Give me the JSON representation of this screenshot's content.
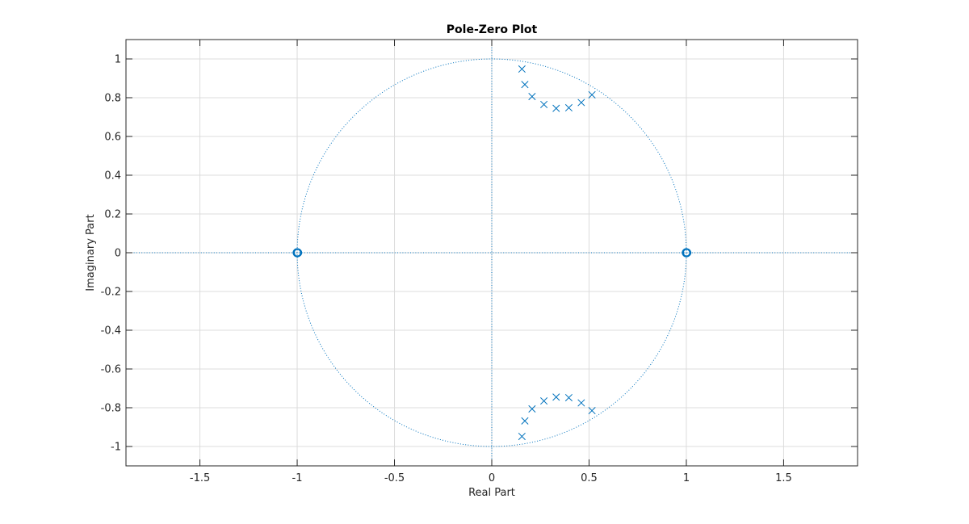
{
  "chart_data": {
    "type": "scatter",
    "title": "Pole-Zero Plot",
    "xlabel": "Real Part",
    "ylabel": "Imaginary Part",
    "xlim": [
      -1.88,
      1.88
    ],
    "ylim": [
      -1.1,
      1.1
    ],
    "xticks": [
      -1.5,
      -1,
      -0.5,
      0,
      0.5,
      1,
      1.5
    ],
    "xtick_labels": [
      "-1.5",
      "-1",
      "-0.5",
      "0",
      "0.5",
      "1",
      "1.5"
    ],
    "yticks": [
      -1,
      -0.8,
      -0.6,
      -0.4,
      -0.2,
      0,
      0.2,
      0.4,
      0.6,
      0.8,
      1
    ],
    "ytick_labels": [
      "-1",
      "-0.8",
      "-0.6",
      "-0.4",
      "-0.2",
      "0",
      "0.2",
      "0.4",
      "0.6",
      "0.8",
      "1"
    ],
    "grid": true,
    "unit_circle": true,
    "color": "#0072BD",
    "series": [
      {
        "marker": "x",
        "points": [
          [
            0.155,
            0.948
          ],
          [
            0.17,
            0.868
          ],
          [
            0.207,
            0.806
          ],
          [
            0.268,
            0.765
          ],
          [
            0.331,
            0.745
          ],
          [
            0.396,
            0.748
          ],
          [
            0.46,
            0.775
          ],
          [
            0.515,
            0.815
          ],
          [
            0.155,
            -0.948
          ],
          [
            0.17,
            -0.868
          ],
          [
            0.207,
            -0.806
          ],
          [
            0.268,
            -0.765
          ],
          [
            0.331,
            -0.745
          ],
          [
            0.396,
            -0.748
          ],
          [
            0.46,
            -0.775
          ],
          [
            0.515,
            -0.815
          ]
        ]
      },
      {
        "marker": "o",
        "points": [
          [
            -1,
            0
          ],
          [
            1,
            0
          ]
        ]
      }
    ]
  }
}
